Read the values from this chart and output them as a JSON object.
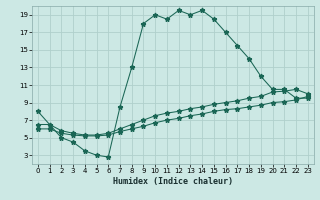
{
  "title": "",
  "xlabel": "Humidex (Indice chaleur)",
  "ylabel": "",
  "bg_color": "#cce8e4",
  "grid_color": "#b0d0cc",
  "line_color": "#1a6655",
  "xlim": [
    -0.5,
    23.5
  ],
  "ylim": [
    2,
    20
  ],
  "xticks": [
    0,
    1,
    2,
    3,
    4,
    5,
    6,
    7,
    8,
    9,
    10,
    11,
    12,
    13,
    14,
    15,
    16,
    17,
    18,
    19,
    20,
    21,
    22,
    23
  ],
  "yticks": [
    3,
    5,
    7,
    9,
    11,
    13,
    15,
    17,
    19
  ],
  "series1_x": [
    0,
    1,
    2,
    3,
    4,
    5,
    6,
    7,
    8,
    9,
    10,
    11,
    12,
    13,
    14,
    15,
    16,
    17,
    18,
    19,
    20,
    21,
    22,
    23
  ],
  "series1_y": [
    8.0,
    6.5,
    5.0,
    4.5,
    3.5,
    3.0,
    2.8,
    8.5,
    13.0,
    18.0,
    19.0,
    18.5,
    19.5,
    19.0,
    19.5,
    18.5,
    17.0,
    15.5,
    14.0,
    12.0,
    10.5,
    10.5,
    9.5,
    9.5
  ],
  "series2_x": [
    0,
    1,
    2,
    3,
    4,
    5,
    6,
    7,
    8,
    9,
    10,
    11,
    12,
    13,
    14,
    15,
    16,
    17,
    18,
    19,
    20,
    21,
    22,
    23
  ],
  "series2_y": [
    6.5,
    6.5,
    5.8,
    5.5,
    5.3,
    5.3,
    5.5,
    6.0,
    6.5,
    7.0,
    7.5,
    7.8,
    8.0,
    8.3,
    8.5,
    8.8,
    9.0,
    9.2,
    9.5,
    9.7,
    10.2,
    10.3,
    10.5,
    10.0
  ],
  "series3_x": [
    0,
    1,
    2,
    3,
    4,
    5,
    6,
    7,
    8,
    9,
    10,
    11,
    12,
    13,
    14,
    15,
    16,
    17,
    18,
    19,
    20,
    21,
    22,
    23
  ],
  "series3_y": [
    6.0,
    6.0,
    5.5,
    5.3,
    5.2,
    5.2,
    5.3,
    5.7,
    6.0,
    6.3,
    6.7,
    7.0,
    7.2,
    7.5,
    7.7,
    8.0,
    8.2,
    8.3,
    8.5,
    8.7,
    9.0,
    9.1,
    9.3,
    9.7
  ],
  "marker": "*",
  "markersize": 3.5,
  "linewidth": 0.75,
  "tick_fontsize": 5,
  "xlabel_fontsize": 6,
  "xlabel_fontweight": "bold"
}
